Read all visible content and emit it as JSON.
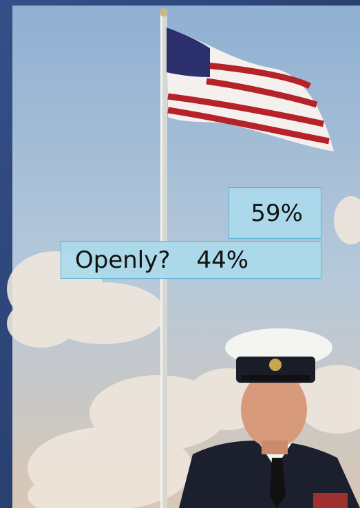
{
  "boxes": [
    {
      "text": "59%"
    },
    {
      "question": "Openly?",
      "text": "44%"
    }
  ]
}
